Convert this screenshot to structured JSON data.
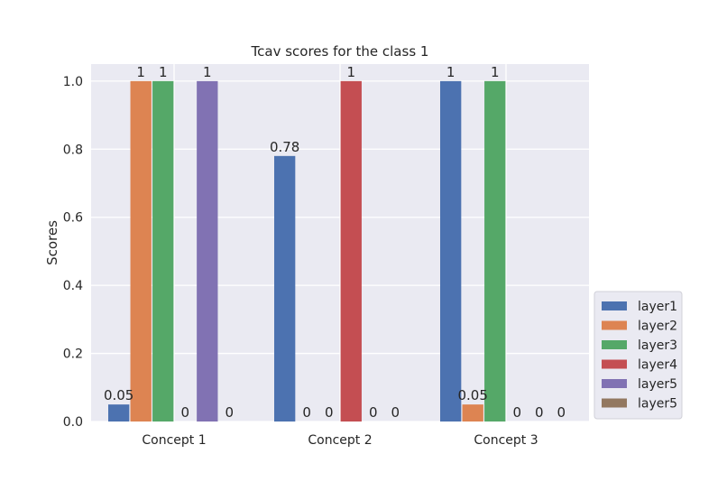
{
  "chart_data": {
    "type": "bar",
    "title": "Tcav scores for the class 1",
    "xlabel": "",
    "ylabel": "Scores",
    "categories": [
      "Concept 1",
      "Concept 2",
      "Concept 3"
    ],
    "ylim": [
      0,
      1.05
    ],
    "yticks": [
      "0.0",
      "0.2",
      "0.4",
      "0.6",
      "0.8",
      "1.0"
    ],
    "grid": true,
    "legend_position": "right-bottom",
    "series": [
      {
        "name": "layer1",
        "color": "#4c72b0",
        "values": [
          0.05,
          0.78,
          1
        ],
        "labels": [
          "0.05",
          "0.78",
          "1"
        ]
      },
      {
        "name": "layer2",
        "color": "#dd8452",
        "values": [
          1,
          0,
          0.05
        ],
        "labels": [
          "1",
          "0",
          "0.05"
        ]
      },
      {
        "name": "layer3",
        "color": "#55a868",
        "values": [
          1,
          0,
          1
        ],
        "labels": [
          "1",
          "0",
          "1"
        ]
      },
      {
        "name": "layer4",
        "color": "#c44e52",
        "values": [
          0,
          1,
          0
        ],
        "labels": [
          "0",
          "1",
          "0"
        ]
      },
      {
        "name": "layer5",
        "color": "#8172b3",
        "values": [
          1,
          0,
          0
        ],
        "labels": [
          "1",
          "0",
          "0"
        ]
      },
      {
        "name": "layer5",
        "color": "#937860",
        "values": [
          0,
          0,
          0
        ],
        "labels": [
          "0",
          "0",
          "0"
        ]
      }
    ]
  }
}
